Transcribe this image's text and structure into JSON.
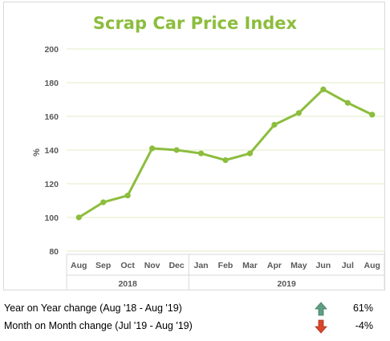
{
  "chart_data": {
    "type": "line",
    "title": "Scrap Car Price Index",
    "ylabel": "%",
    "xlabel": "",
    "ylim": [
      80,
      200
    ],
    "yticks": [
      "200",
      "180",
      "160",
      "140",
      "120",
      "100",
      "80"
    ],
    "grid": true,
    "categories": [
      "Aug",
      "Sep",
      "Oct",
      "Nov",
      "Dec",
      "Jan",
      "Feb",
      "Mar",
      "Apr",
      "May",
      "Jun",
      "Jul",
      "Aug"
    ],
    "year_groups": [
      {
        "label": "2018",
        "count": 5
      },
      {
        "label": "2019",
        "count": 8
      }
    ],
    "series": [
      {
        "values": [
          100,
          109,
          113,
          141,
          140,
          138,
          134,
          138,
          155,
          162,
          176,
          168,
          161
        ]
      }
    ],
    "colors": {
      "line": "#8cbd3d",
      "title": "#8cbd3d",
      "grid": "#e2ecc4",
      "axis_text": "#595959"
    }
  },
  "summary": [
    {
      "label": "Year on Year change (Aug '18 - Aug '19)",
      "value": "61%",
      "direction": "up",
      "icon": "up-arrow-icon",
      "color": "#5f9e82"
    },
    {
      "label": "Month on Month change (Jul '19 - Aug '19)",
      "value": "-4%",
      "direction": "down",
      "icon": "down-arrow-icon",
      "color": "#d9462b"
    }
  ]
}
